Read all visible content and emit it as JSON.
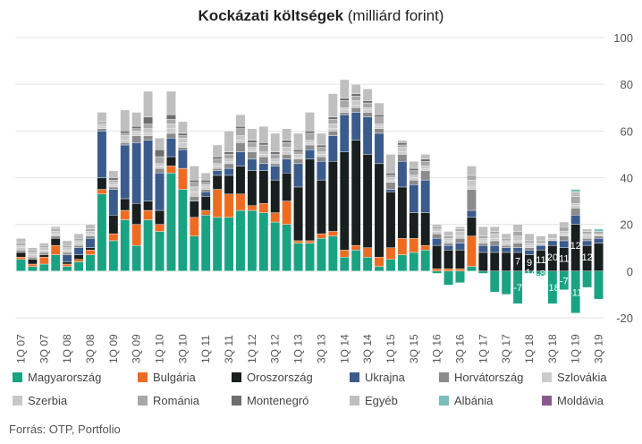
{
  "title": {
    "bold": "Kockázati költségek",
    "rest": " (milliárd forint)"
  },
  "source": "Forrás: OTP, Portfolio",
  "chart_data": {
    "type": "bar",
    "stacked": true,
    "title": "Kockázati költségek (milliárd forint)",
    "ylim": [
      -20,
      100
    ],
    "yticks": [
      -20,
      0,
      20,
      40,
      60,
      80,
      100
    ],
    "y_axis_position": "right",
    "grid": true,
    "legend_position": "bottom",
    "categories": [
      "1Q 07",
      "2Q 07",
      "3Q 07",
      "4Q 07",
      "1Q 08",
      "2Q 08",
      "3Q 08",
      "4Q 08",
      "1Q 09",
      "2Q 09",
      "3Q 09",
      "4Q 09",
      "1Q 10",
      "2Q 10",
      "3Q 10",
      "4Q 10",
      "1Q 11",
      "2Q 11",
      "3Q 11",
      "4Q 11",
      "1Q 12",
      "2Q 12",
      "3Q 12",
      "4Q 12",
      "1Q 13",
      "2Q 13",
      "3Q 13",
      "4Q 13",
      "1Q 14",
      "2Q 14",
      "3Q 14",
      "4Q 14",
      "1Q 15",
      "2Q 15",
      "3Q 15",
      "4Q 15",
      "1Q 16",
      "2Q 16",
      "3Q 16",
      "4Q 16",
      "1Q 17",
      "2Q 17",
      "3Q 17",
      "4Q 17",
      "1Q 18",
      "2Q 18",
      "3Q 18",
      "4Q 18",
      "1Q 19",
      "2Q 19",
      "3Q 19"
    ],
    "xtick_labels": [
      "1Q 07",
      "3Q 07",
      "1Q 08",
      "3Q 08",
      "1Q 09",
      "3Q 09",
      "1Q 10",
      "3Q 10",
      "1Q 11",
      "3Q 11",
      "1Q 12",
      "3Q 12",
      "1Q 13",
      "3Q 13",
      "1Q 14",
      "3Q 14",
      "1Q 15",
      "3Q 15",
      "1Q 16",
      "3Q 16",
      "1Q 17",
      "3Q 17",
      "1Q 18",
      "3Q 18",
      "1Q 19",
      "3Q 19"
    ],
    "series": [
      {
        "name": "Magyarország",
        "color": "#1aa383",
        "values": [
          5,
          2,
          3,
          7,
          2,
          4,
          7,
          33,
          13,
          22,
          11,
          22,
          17,
          42,
          35,
          15,
          24,
          23,
          23,
          26,
          26,
          25,
          21,
          20,
          12,
          12,
          14,
          15,
          6,
          9,
          6,
          2,
          5,
          7,
          8,
          9,
          -1,
          -6,
          -5,
          2,
          -1,
          -9,
          -10,
          -14,
          -1,
          -2,
          -14,
          -8,
          -18,
          -7,
          -12
        ]
      },
      {
        "name": "Bulgária",
        "color": "#ee6c22",
        "values": [
          1,
          1,
          3,
          4,
          1,
          1,
          2,
          2,
          3,
          4,
          9,
          4,
          3,
          3,
          9,
          8,
          2,
          12,
          10,
          7,
          2,
          4,
          4,
          10,
          1,
          1,
          2,
          2,
          3,
          2,
          4,
          4,
          5,
          7,
          6,
          2,
          1,
          1,
          1,
          13,
          0,
          0,
          0,
          0,
          0,
          0,
          0,
          0,
          0,
          0,
          0
        ]
      },
      {
        "name": "Oroszország",
        "color": "#181f1e",
        "values": [
          2,
          2,
          1,
          3,
          1,
          2,
          1,
          5,
          8,
          5,
          9,
          4,
          6,
          4,
          0,
          7,
          6,
          6,
          8,
          12,
          15,
          14,
          14,
          12,
          23,
          35,
          23,
          30,
          42,
          45,
          40,
          40,
          24,
          22,
          11,
          14,
          10,
          8,
          8,
          8,
          8,
          8,
          8,
          8,
          7,
          9,
          11,
          10,
          20,
          11,
          12
        ]
      },
      {
        "name": "Ukrajna",
        "color": "#3a5b8c",
        "values": [
          0,
          0,
          0,
          0,
          3,
          3,
          4,
          20,
          11,
          23,
          26,
          26,
          16,
          8,
          8,
          0,
          2,
          2,
          3,
          6,
          5,
          3,
          6,
          6,
          10,
          4,
          8,
          11,
          16,
          12,
          16,
          13,
          1,
          11,
          12,
          14,
          3,
          2,
          3,
          3,
          3,
          3,
          2,
          2,
          2,
          2,
          2,
          3,
          4,
          2,
          2
        ]
      },
      {
        "name": "Horvátország",
        "color": "#8c8c8c",
        "values": [
          1,
          1,
          1,
          1,
          1,
          1,
          1,
          1,
          1,
          1,
          3,
          2,
          2,
          2,
          1,
          2,
          1,
          1,
          2,
          4,
          3,
          3,
          1,
          2,
          2,
          2,
          2,
          2,
          1,
          2,
          2,
          2,
          3,
          3,
          2,
          4,
          2,
          1,
          2,
          9,
          1,
          2,
          1,
          2,
          1,
          0,
          0,
          2,
          3,
          1,
          1
        ]
      },
      {
        "name": "Szlovákia",
        "color": "#cccccc",
        "values": [
          1,
          1,
          1,
          1,
          1,
          1,
          1,
          1,
          1,
          1,
          1,
          1,
          1,
          2,
          2,
          2,
          1,
          1,
          1,
          1,
          1,
          1,
          1,
          1,
          1,
          1,
          1,
          1,
          1,
          1,
          1,
          1,
          1,
          1,
          1,
          1,
          1,
          1,
          1,
          1,
          1,
          1,
          1,
          1,
          1,
          1,
          1,
          1,
          1,
          1,
          1
        ]
      },
      {
        "name": "Szerbia",
        "color": "#c8c8c8",
        "values": [
          1,
          1,
          1,
          1,
          1,
          1,
          1,
          1,
          1,
          2,
          1,
          2,
          1,
          2,
          2,
          2,
          1,
          1,
          1,
          2,
          1,
          1,
          1,
          2,
          1,
          1,
          1,
          2,
          1,
          2,
          1,
          1,
          1,
          2,
          1,
          1,
          1,
          1,
          2,
          3,
          1,
          2,
          1,
          2,
          1,
          0,
          0,
          1,
          1,
          1,
          0
        ]
      },
      {
        "name": "Románia",
        "color": "#a8a8a8",
        "values": [
          1,
          1,
          1,
          1,
          1,
          1,
          1,
          1,
          1,
          1,
          1,
          2,
          3,
          2,
          1,
          2,
          1,
          2,
          2,
          3,
          2,
          3,
          2,
          2,
          1,
          3,
          2,
          2,
          3,
          2,
          2,
          3,
          1,
          1,
          2,
          2,
          1,
          1,
          1,
          2,
          1,
          1,
          1,
          2,
          1,
          1,
          0,
          2,
          3,
          1,
          1
        ]
      },
      {
        "name": "Montenegró",
        "color": "#6e6e6e",
        "values": [
          0,
          0,
          0,
          0,
          0,
          0,
          0,
          0,
          1,
          1,
          1,
          3,
          3,
          2,
          1,
          1,
          1,
          1,
          1,
          1,
          1,
          1,
          1,
          1,
          1,
          1,
          1,
          1,
          1,
          1,
          1,
          1,
          1,
          1,
          1,
          1,
          0,
          0,
          0,
          0,
          0,
          0,
          0,
          0,
          0,
          0,
          0,
          0,
          0,
          0,
          0
        ]
      },
      {
        "name": "Egyéb",
        "color": "#bfbfbf",
        "values": [
          2,
          1,
          1,
          1,
          2,
          2,
          2,
          4,
          3,
          9,
          6,
          11,
          5,
          10,
          5,
          6,
          3,
          5,
          9,
          5,
          5,
          7,
          8,
          5,
          7,
          8,
          5,
          10,
          8,
          4,
          5,
          5,
          8,
          1,
          3,
          2,
          1,
          2,
          1,
          4,
          4,
          2,
          2,
          3,
          3,
          2,
          2,
          2,
          2,
          1,
          0
        ]
      },
      {
        "name": "Albánia",
        "color": "#7abebc",
        "values": [
          0,
          0,
          0,
          0,
          0,
          0,
          0,
          0,
          0,
          0,
          0,
          0,
          0,
          0,
          0,
          0,
          0,
          0,
          0,
          0,
          0,
          0,
          0,
          0,
          0,
          0,
          0,
          0,
          0,
          0,
          0,
          0,
          0,
          0,
          0,
          0,
          0,
          0,
          0,
          0,
          0,
          0,
          0,
          0,
          0,
          0,
          0,
          0,
          1,
          0,
          1
        ]
      },
      {
        "name": "Moldávia",
        "color": "#8a5a8e",
        "values": [
          0,
          0,
          0,
          0,
          0,
          0,
          0,
          0,
          0,
          0,
          0,
          0,
          0,
          0,
          0,
          0,
          0,
          0,
          0,
          0,
          0,
          0,
          0,
          0,
          0,
          0,
          0,
          0,
          0,
          0,
          0,
          0,
          0,
          0,
          0,
          0,
          0,
          0,
          0,
          0,
          0,
          0,
          0,
          0,
          0,
          0,
          0,
          0,
          0,
          0,
          0
        ]
      }
    ],
    "data_labels": [
      {
        "category": "4Q 17",
        "value": "7"
      },
      {
        "category": "1Q 18",
        "value": "9"
      },
      {
        "category": "2Q 18",
        "value": "11"
      },
      {
        "category": "3Q 18",
        "value": "20"
      },
      {
        "category": "4Q 18",
        "value": "11"
      },
      {
        "category": "1Q 19",
        "value": "12"
      },
      {
        "category": "2Q 19",
        "value": "12"
      },
      {
        "category": "4Q 17",
        "value": "-7"
      },
      {
        "category": "1Q 18",
        "value": "-14"
      },
      {
        "category": "2Q 18",
        "value": "-8"
      },
      {
        "category": "3Q 18",
        "value": "-18"
      },
      {
        "category": "4Q 18",
        "value": "-7"
      },
      {
        "category": "1Q 19",
        "value": "-11"
      }
    ]
  }
}
